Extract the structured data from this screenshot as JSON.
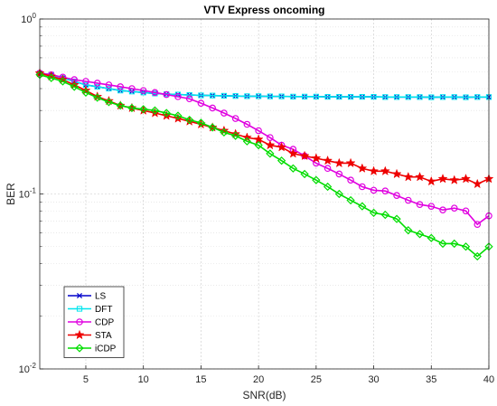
{
  "chart_data": {
    "type": "line",
    "title": "VTV Express oncoming",
    "xlabel": "SNR(dB)",
    "ylabel": "BER",
    "xlim": [
      1,
      40
    ],
    "ylim": [
      0.01,
      1
    ],
    "yscale": "log",
    "grid": true,
    "minor_grid": true,
    "legend_position": "bottom-left",
    "xticks": [
      5,
      10,
      15,
      20,
      25,
      30,
      35,
      40
    ],
    "ytick_labels": [
      "10^0",
      "10^-1",
      "10^-2"
    ],
    "x": [
      1,
      2,
      3,
      4,
      5,
      6,
      7,
      8,
      9,
      10,
      11,
      12,
      13,
      14,
      15,
      16,
      17,
      18,
      19,
      20,
      21,
      22,
      23,
      24,
      25,
      26,
      27,
      28,
      29,
      30,
      31,
      32,
      33,
      34,
      35,
      36,
      37,
      38,
      39,
      40
    ],
    "series": [
      {
        "name": "LS",
        "color": "#0000cc",
        "marker": "x",
        "values": [
          0.49,
          0.48,
          0.46,
          0.44,
          0.42,
          0.41,
          0.4,
          0.39,
          0.385,
          0.38,
          0.375,
          0.372,
          0.37,
          0.368,
          0.366,
          0.365,
          0.364,
          0.363,
          0.362,
          0.362,
          0.361,
          0.361,
          0.36,
          0.36,
          0.36,
          0.359,
          0.359,
          0.359,
          0.359,
          0.359,
          0.358,
          0.358,
          0.358,
          0.358,
          0.357,
          0.358,
          0.358,
          0.357,
          0.358,
          0.358
        ]
      },
      {
        "name": "DFT",
        "color": "#00e5ee",
        "marker": "square",
        "values": [
          0.49,
          0.48,
          0.46,
          0.44,
          0.42,
          0.41,
          0.4,
          0.39,
          0.385,
          0.38,
          0.375,
          0.372,
          0.37,
          0.368,
          0.366,
          0.365,
          0.364,
          0.363,
          0.362,
          0.362,
          0.361,
          0.361,
          0.36,
          0.36,
          0.36,
          0.359,
          0.359,
          0.359,
          0.359,
          0.359,
          0.358,
          0.358,
          0.358,
          0.358,
          0.357,
          0.358,
          0.358,
          0.357,
          0.358,
          0.358
        ]
      },
      {
        "name": "CDP",
        "color": "#e000e0",
        "marker": "circle",
        "values": [
          0.49,
          0.48,
          0.465,
          0.45,
          0.44,
          0.43,
          0.42,
          0.41,
          0.4,
          0.39,
          0.38,
          0.37,
          0.36,
          0.35,
          0.33,
          0.31,
          0.29,
          0.27,
          0.25,
          0.23,
          0.21,
          0.19,
          0.18,
          0.165,
          0.15,
          0.14,
          0.13,
          0.12,
          0.11,
          0.105,
          0.104,
          0.098,
          0.092,
          0.087,
          0.085,
          0.081,
          0.083,
          0.08,
          0.067,
          0.075
        ]
      },
      {
        "name": "STA",
        "color": "#ee0000",
        "marker": "star",
        "values": [
          0.49,
          0.47,
          0.45,
          0.42,
          0.39,
          0.36,
          0.34,
          0.32,
          0.31,
          0.3,
          0.29,
          0.28,
          0.27,
          0.26,
          0.25,
          0.24,
          0.23,
          0.22,
          0.21,
          0.205,
          0.19,
          0.185,
          0.17,
          0.165,
          0.16,
          0.155,
          0.15,
          0.15,
          0.14,
          0.135,
          0.135,
          0.13,
          0.125,
          0.125,
          0.118,
          0.122,
          0.12,
          0.122,
          0.114,
          0.122
        ]
      },
      {
        "name": "iCDP",
        "color": "#00dd00",
        "marker": "diamond",
        "values": [
          0.48,
          0.46,
          0.44,
          0.41,
          0.38,
          0.355,
          0.335,
          0.32,
          0.31,
          0.305,
          0.3,
          0.29,
          0.28,
          0.265,
          0.255,
          0.24,
          0.225,
          0.215,
          0.2,
          0.19,
          0.17,
          0.155,
          0.14,
          0.13,
          0.12,
          0.11,
          0.1,
          0.092,
          0.085,
          0.078,
          0.076,
          0.072,
          0.062,
          0.059,
          0.056,
          0.052,
          0.052,
          0.05,
          0.044,
          0.05
        ]
      }
    ]
  }
}
